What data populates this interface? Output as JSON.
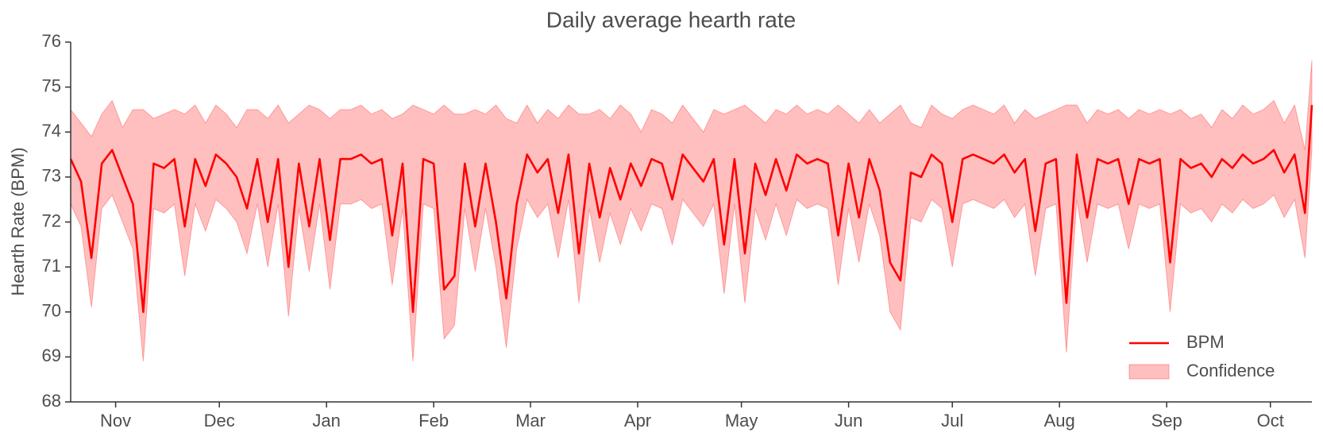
{
  "chart_data": {
    "type": "line",
    "title": "Daily average hearth rate",
    "ylabel": "Hearth Rate (BPM)",
    "x": [
      0,
      3,
      6,
      9,
      12,
      15,
      18,
      21,
      24,
      27,
      30,
      33,
      36,
      39,
      42,
      45,
      48,
      51,
      54,
      57,
      60,
      63,
      66,
      69,
      72,
      75,
      78,
      81,
      84,
      87,
      90,
      93,
      96,
      99,
      102,
      105,
      108,
      111,
      114,
      117,
      120,
      123,
      126,
      129,
      132,
      135,
      138,
      141,
      144,
      147,
      150,
      153,
      156,
      159,
      162,
      165,
      168,
      171,
      174,
      177,
      180,
      183,
      186,
      189,
      192,
      195,
      198,
      201,
      204,
      207,
      210,
      213,
      216,
      219,
      222,
      225,
      228,
      231,
      234,
      237,
      240,
      243,
      246,
      249,
      252,
      255,
      258,
      261,
      264,
      267,
      270,
      273,
      276,
      279,
      282,
      285,
      288,
      291,
      294,
      297,
      300,
      303,
      306,
      309,
      312,
      315,
      318,
      321,
      324,
      327,
      330,
      333,
      336,
      339,
      342,
      345,
      348,
      351,
      354,
      357,
      359
    ],
    "xlim": [
      0,
      359
    ],
    "xticks": [
      {
        "value": 13,
        "label": "Nov"
      },
      {
        "value": 43,
        "label": "Dec"
      },
      {
        "value": 74,
        "label": "Jan"
      },
      {
        "value": 105,
        "label": "Feb"
      },
      {
        "value": 133,
        "label": "Mar"
      },
      {
        "value": 164,
        "label": "Apr"
      },
      {
        "value": 194,
        "label": "May"
      },
      {
        "value": 225,
        "label": "Jun"
      },
      {
        "value": 255,
        "label": "Jul"
      },
      {
        "value": 286,
        "label": "Aug"
      },
      {
        "value": 317,
        "label": "Sep"
      },
      {
        "value": 347,
        "label": "Oct"
      }
    ],
    "ylim": [
      68,
      76
    ],
    "yticks": [
      68,
      69,
      70,
      71,
      72,
      73,
      74,
      75,
      76
    ],
    "grid": false,
    "legend": "lower right",
    "series": [
      {
        "name": "BPM",
        "color": "#ff0000",
        "values": [
          73.4,
          72.9,
          71.2,
          73.3,
          73.6,
          73.0,
          72.4,
          70.0,
          73.3,
          73.2,
          73.4,
          71.9,
          73.4,
          72.8,
          73.5,
          73.3,
          73.0,
          72.3,
          73.4,
          72.0,
          73.4,
          71.0,
          73.3,
          71.9,
          73.4,
          71.6,
          73.4,
          73.4,
          73.5,
          73.3,
          73.4,
          71.7,
          73.3,
          70.0,
          73.4,
          73.3,
          70.5,
          70.8,
          73.3,
          71.9,
          73.3,
          72.0,
          70.3,
          72.4,
          73.5,
          73.1,
          73.4,
          72.2,
          73.5,
          71.3,
          73.3,
          72.1,
          73.2,
          72.5,
          73.3,
          72.8,
          73.4,
          73.3,
          72.5,
          73.5,
          73.2,
          72.9,
          73.4,
          71.5,
          73.4,
          71.3,
          73.3,
          72.6,
          73.4,
          72.7,
          73.5,
          73.3,
          73.4,
          73.3,
          71.7,
          73.3,
          72.1,
          73.4,
          72.7,
          71.1,
          70.7,
          73.1,
          73.0,
          73.5,
          73.3,
          72.0,
          73.4,
          73.5,
          73.4,
          73.3,
          73.5,
          73.1,
          73.4,
          71.8,
          73.3,
          73.4,
          70.2,
          73.5,
          72.1,
          73.4,
          73.3,
          73.4,
          72.4,
          73.4,
          73.3,
          73.4,
          71.1,
          73.4,
          73.2,
          73.3,
          73.0,
          73.4,
          73.2,
          73.5,
          73.3,
          73.4,
          73.6,
          73.1,
          73.5,
          72.2,
          74.6
        ]
      },
      {
        "name": "Confidence",
        "color": "#ff0000",
        "opacity": 0.25,
        "lower": [
          72.4,
          71.9,
          70.1,
          72.3,
          72.6,
          72.0,
          71.4,
          68.9,
          72.3,
          72.2,
          72.4,
          70.8,
          72.4,
          71.8,
          72.5,
          72.3,
          72.0,
          71.3,
          72.4,
          71.0,
          72.4,
          69.9,
          72.3,
          70.9,
          72.4,
          70.5,
          72.4,
          72.4,
          72.5,
          72.3,
          72.4,
          70.6,
          72.3,
          68.9,
          72.4,
          72.3,
          69.4,
          69.7,
          72.3,
          70.9,
          72.3,
          71.0,
          69.2,
          71.4,
          72.5,
          72.1,
          72.4,
          71.2,
          72.5,
          70.2,
          72.3,
          71.1,
          72.2,
          71.5,
          72.3,
          71.8,
          72.4,
          72.3,
          71.5,
          72.5,
          72.2,
          71.9,
          72.4,
          70.4,
          72.4,
          70.2,
          72.3,
          71.6,
          72.4,
          71.7,
          72.5,
          72.3,
          72.4,
          72.3,
          70.6,
          72.3,
          71.1,
          72.4,
          71.7,
          70.0,
          69.6,
          72.1,
          72.0,
          72.5,
          72.3,
          71.0,
          72.4,
          72.5,
          72.4,
          72.3,
          72.5,
          72.1,
          72.4,
          70.8,
          72.3,
          72.4,
          69.1,
          72.5,
          71.1,
          72.4,
          72.3,
          72.4,
          71.4,
          72.4,
          72.3,
          72.4,
          70.0,
          72.4,
          72.2,
          72.3,
          72.0,
          72.4,
          72.2,
          72.5,
          72.3,
          72.4,
          72.6,
          72.1,
          72.5,
          71.2,
          73.6
        ],
        "upper": [
          74.5,
          74.2,
          73.9,
          74.4,
          74.7,
          74.1,
          74.5,
          74.5,
          74.3,
          74.4,
          74.5,
          74.4,
          74.6,
          74.2,
          74.6,
          74.4,
          74.1,
          74.5,
          74.5,
          74.3,
          74.6,
          74.2,
          74.4,
          74.6,
          74.5,
          74.3,
          74.5,
          74.5,
          74.6,
          74.4,
          74.5,
          74.3,
          74.4,
          74.6,
          74.5,
          74.4,
          74.6,
          74.4,
          74.4,
          74.5,
          74.4,
          74.6,
          74.3,
          74.2,
          74.6,
          74.2,
          74.5,
          74.3,
          74.6,
          74.4,
          74.4,
          74.5,
          74.3,
          74.6,
          74.4,
          74.0,
          74.5,
          74.4,
          74.2,
          74.6,
          74.3,
          74.0,
          74.5,
          74.4,
          74.5,
          74.6,
          74.4,
          74.2,
          74.5,
          74.4,
          74.6,
          74.4,
          74.5,
          74.4,
          74.6,
          74.4,
          74.2,
          74.5,
          74.2,
          74.4,
          74.6,
          74.2,
          74.1,
          74.6,
          74.4,
          74.3,
          74.5,
          74.6,
          74.5,
          74.4,
          74.6,
          74.2,
          74.5,
          74.3,
          74.4,
          74.5,
          74.6,
          74.6,
          74.2,
          74.5,
          74.4,
          74.5,
          74.3,
          74.5,
          74.4,
          74.5,
          74.4,
          74.5,
          74.3,
          74.4,
          74.1,
          74.5,
          74.3,
          74.6,
          74.4,
          74.5,
          74.7,
          74.2,
          74.6,
          73.6,
          75.6
        ]
      }
    ]
  }
}
